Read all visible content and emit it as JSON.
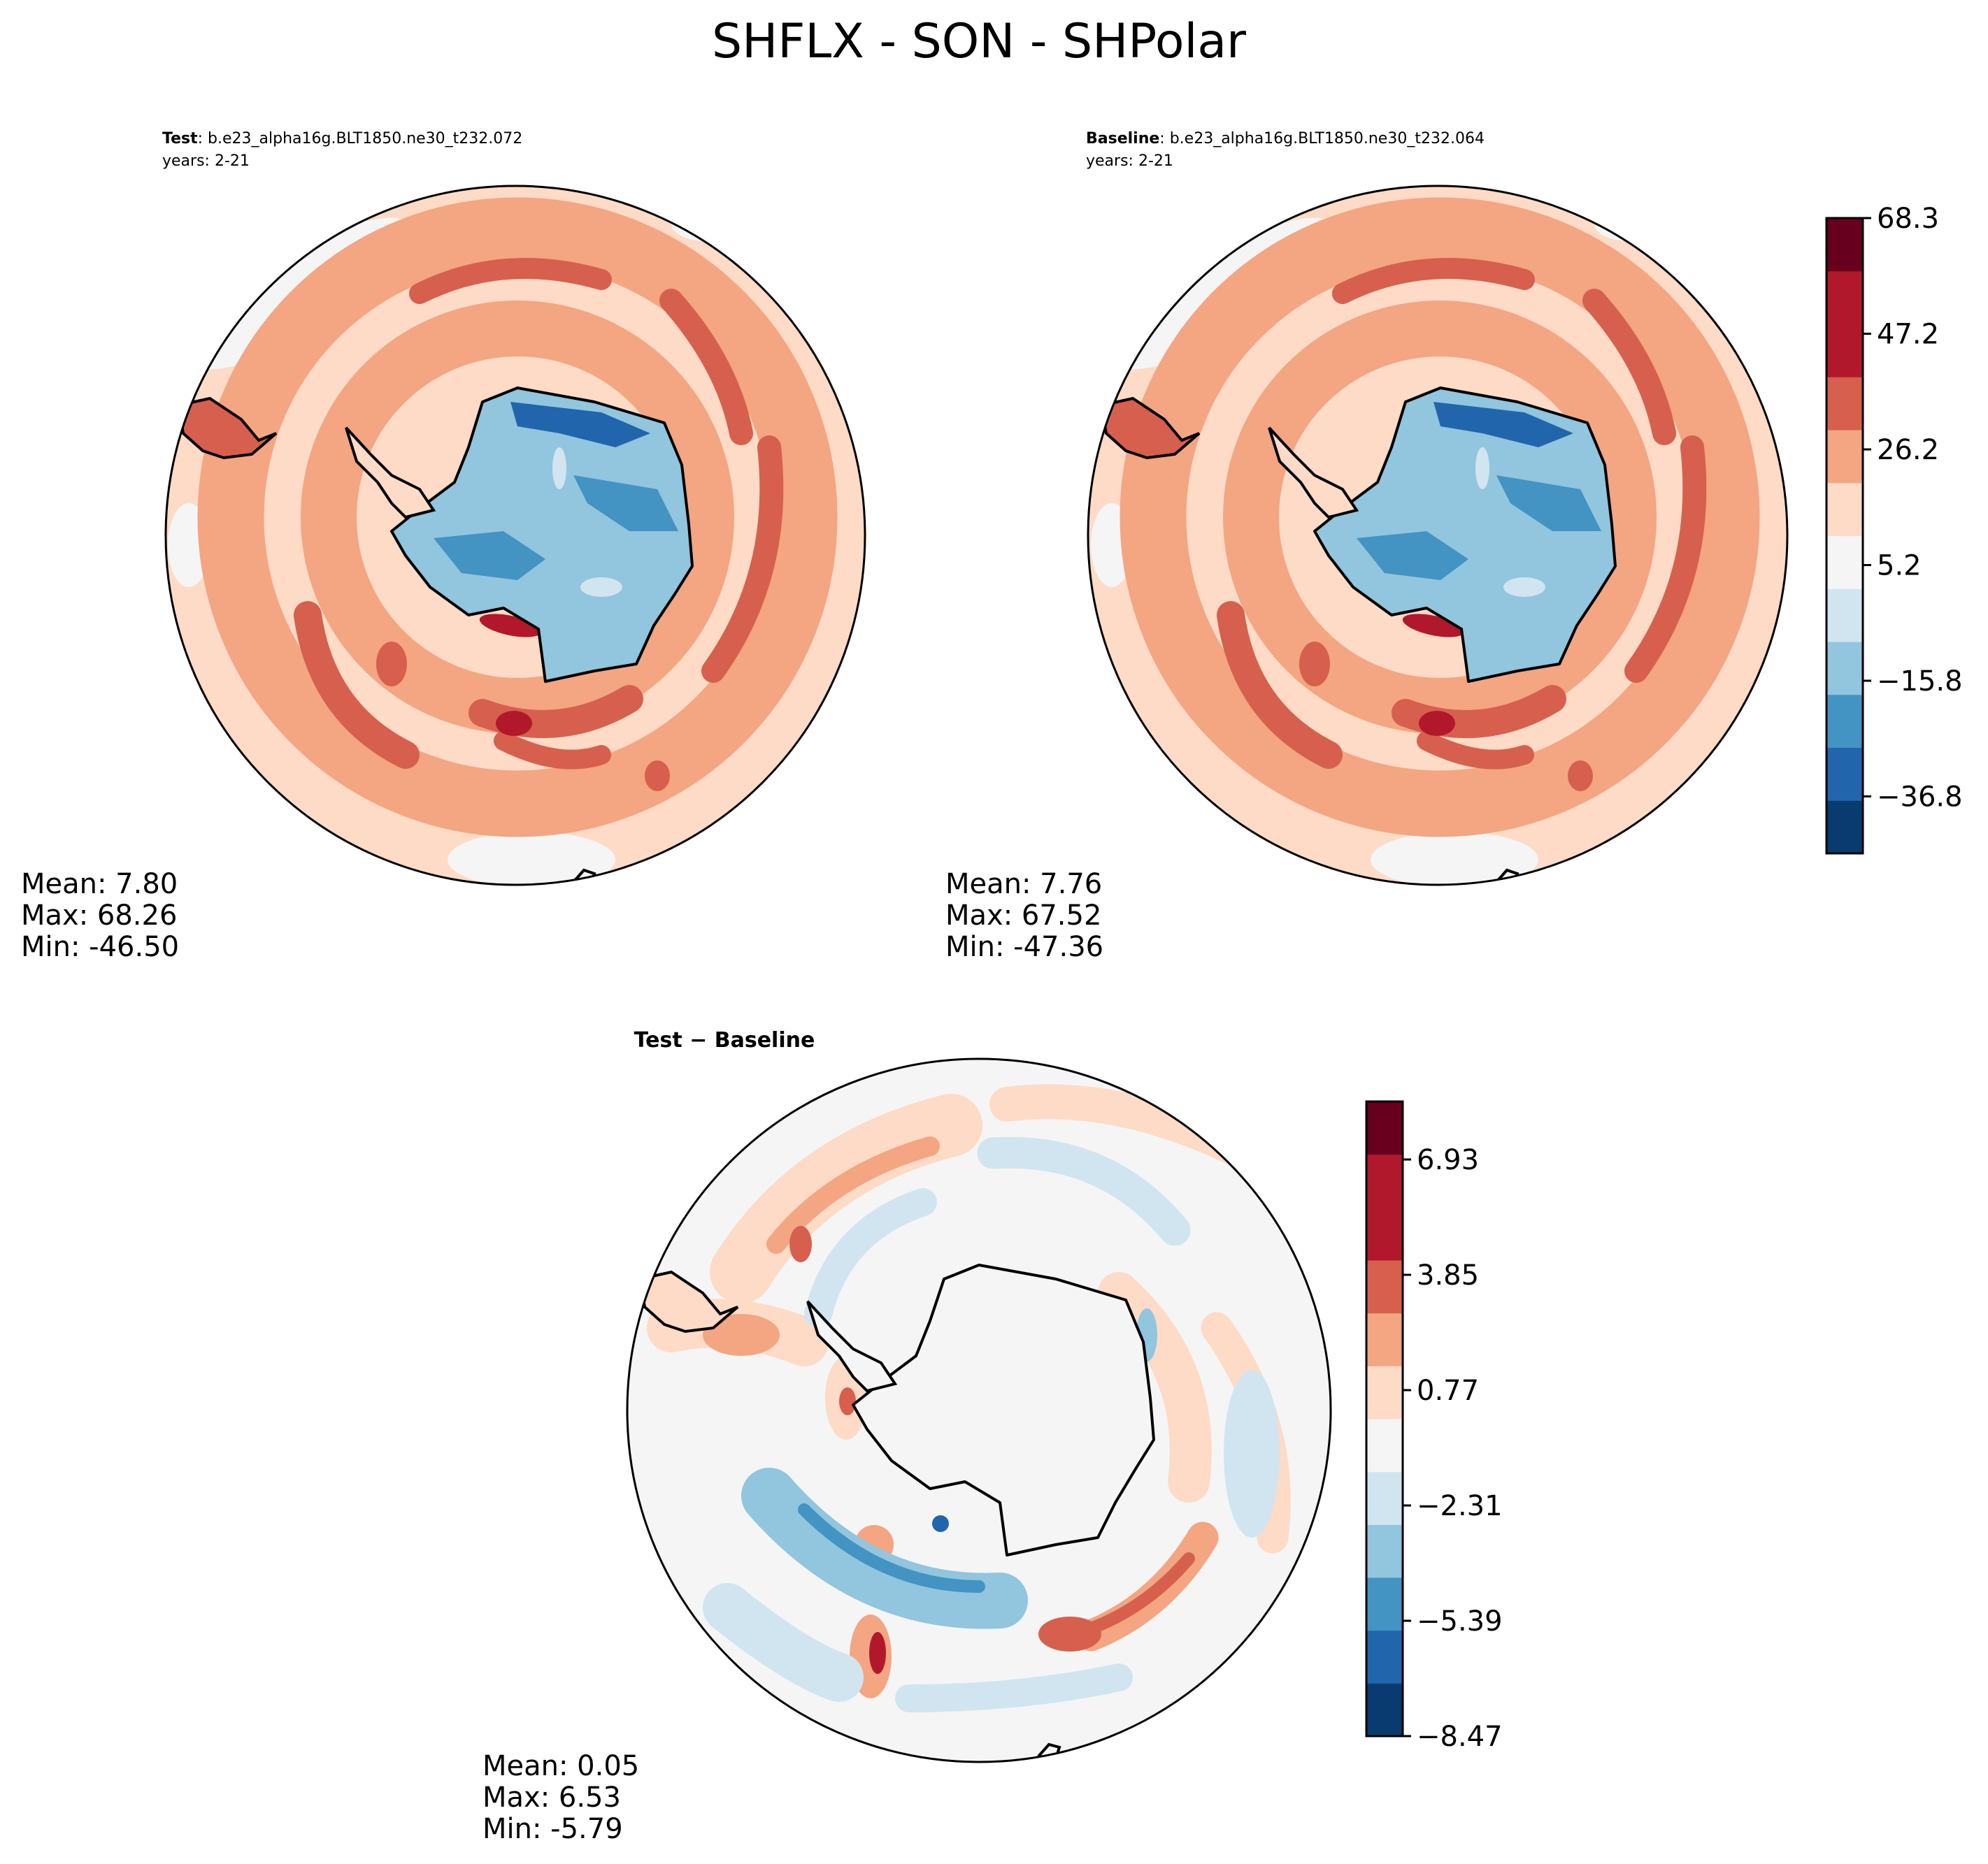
{
  "figure": {
    "title": "SHFLX - SON - SHPolar"
  },
  "colors": {
    "rdbu": [
      "#0a3b70",
      "#2166ac",
      "#4393c3",
      "#92c5de",
      "#d1e5f0",
      "#f5f5f5",
      "#fddbc7",
      "#f4a582",
      "#d6604d",
      "#b2182b",
      "#67001f"
    ],
    "coast": "#000000",
    "frame": "#000000"
  },
  "panels": {
    "test": {
      "label_bold": "Test",
      "case_name": ": b.e23_alpha16g.BLT1850.ne30_t232.072",
      "years": "years: 2-21",
      "stats": {
        "mean": "Mean:  7.80",
        "max": "Max: 68.26",
        "min": "Min: -46.50"
      }
    },
    "baseline": {
      "label_bold": "Baseline",
      "case_name": ": b.e23_alpha16g.BLT1850.ne30_t232.064",
      "years": "years: 2-21",
      "stats": {
        "mean": "Mean:  7.76",
        "max": "Max: 67.52",
        "min": "Min: -47.36"
      }
    },
    "diff": {
      "label": "Test − Baseline",
      "stats": {
        "mean": "Mean:  0.05",
        "max": "Max:  6.53",
        "min": "Min: -5.79"
      }
    }
  },
  "colorbars": {
    "main": {
      "ticks": [
        "68.3",
        "47.2",
        "26.2",
        "5.2",
        "−15.8",
        "−36.8"
      ],
      "levels": 12
    },
    "diff": {
      "ticks": [
        "6.93",
        "3.85",
        "0.77",
        "−2.31",
        "−5.39",
        "−8.47"
      ],
      "levels": 12
    }
  }
}
